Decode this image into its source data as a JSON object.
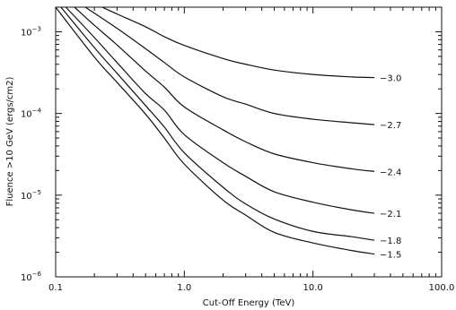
{
  "chart_data": {
    "type": "line",
    "xlabel": "Cut-Off Energy (TeV)",
    "ylabel": "Fluence >10 GeV (ergs/cm2)",
    "xscale": "log",
    "yscale": "log",
    "xlim": [
      0.1,
      100.0
    ],
    "ylim": [
      1e-06,
      0.002
    ],
    "grid": false,
    "x_ticks": [
      {
        "value": 0.1,
        "label": "0.1"
      },
      {
        "value": 1.0,
        "label": "1.0"
      },
      {
        "value": 10.0,
        "label": "10.0"
      },
      {
        "value": 100.0,
        "label": "100.0"
      }
    ],
    "y_ticks": [
      {
        "value": 1e-06,
        "base": "10",
        "exp": "−6"
      },
      {
        "value": 1e-05,
        "base": "10",
        "exp": "−5"
      },
      {
        "value": 0.0001,
        "base": "10",
        "exp": "−4"
      },
      {
        "value": 0.001,
        "base": "10",
        "exp": "−3"
      }
    ],
    "series": [
      {
        "name": "−3.0",
        "x": [
          0.23,
          0.3,
          0.5,
          0.7,
          1.0,
          2.0,
          3.0,
          5.0,
          10.0,
          20.0,
          30.0
        ],
        "y": [
          0.002,
          0.00165,
          0.00115,
          0.00087,
          0.00068,
          0.00047,
          0.0004,
          0.00034,
          0.0003,
          0.00028,
          0.000275
        ]
      },
      {
        "name": "−2.7",
        "x": [
          0.17,
          0.3,
          0.5,
          0.7,
          1.0,
          2.0,
          3.0,
          5.0,
          10.0,
          20.0,
          30.0
        ],
        "y": [
          0.002,
          0.0011,
          0.00062,
          0.00042,
          0.00028,
          0.00016,
          0.00013,
          0.0001,
          8.5e-05,
          7.7e-05,
          7.3e-05
        ]
      },
      {
        "name": "−2.4",
        "x": [
          0.14,
          0.2,
          0.3,
          0.5,
          0.7,
          1.0,
          2.0,
          3.0,
          5.0,
          10.0,
          20.0,
          30.0
        ],
        "y": [
          0.002,
          0.0012,
          0.00069,
          0.00033,
          0.00021,
          0.00012,
          6.3e-05,
          4.5e-05,
          3.2e-05,
          2.5e-05,
          2.1e-05,
          1.95e-05
        ]
      },
      {
        "name": "−2.1",
        "x": [
          0.12,
          0.2,
          0.3,
          0.5,
          0.7,
          1.0,
          2.0,
          3.0,
          5.0,
          10.0,
          20.0,
          30.0
        ],
        "y": [
          0.002,
          0.00085,
          0.00042,
          0.000175,
          0.00011,
          5.5e-05,
          2.5e-05,
          1.7e-05,
          1.1e-05,
          8.2e-06,
          6.6e-06,
          6e-06
        ]
      },
      {
        "name": "−1.8",
        "x": [
          0.11,
          0.2,
          0.3,
          0.5,
          0.7,
          1.0,
          2.0,
          3.0,
          5.0,
          10.0,
          20.0,
          30.0
        ],
        "y": [
          0.002,
          0.00064,
          0.00031,
          0.000125,
          6.8e-05,
          3.3e-05,
          1.25e-05,
          7.8e-06,
          5.1e-06,
          3.6e-06,
          3.1e-06,
          2.8e-06
        ]
      },
      {
        "name": "−1.5",
        "x": [
          0.1,
          0.2,
          0.3,
          0.5,
          0.7,
          1.0,
          2.0,
          3.0,
          5.0,
          10.0,
          20.0,
          30.0
        ],
        "y": [
          0.002,
          0.00049,
          0.00024,
          9.8e-05,
          5e-05,
          2.4e-05,
          8.7e-06,
          5.7e-06,
          3.5e-06,
          2.6e-06,
          2.1e-06,
          1.9e-06
        ]
      }
    ]
  }
}
